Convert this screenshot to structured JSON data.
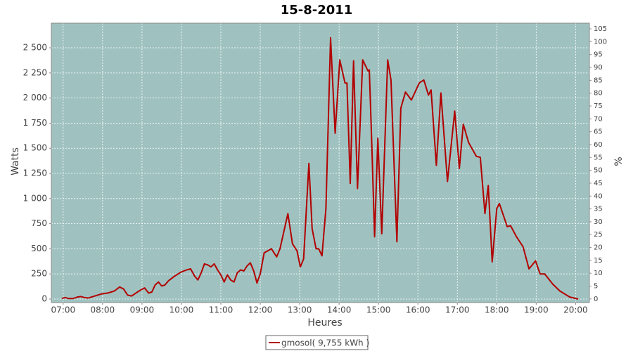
{
  "chart_data": {
    "type": "line",
    "title": "15-8-2011",
    "x_label": "Heures",
    "y_label": "Watts",
    "y2_label": "%",
    "xlim": [
      "06:42",
      "20:21"
    ],
    "xticks": [
      "07:00",
      "08:00",
      "09:00",
      "10:00",
      "11:00",
      "12:00",
      "13:00",
      "14:00",
      "15:00",
      "16:00",
      "17:00",
      "18:00",
      "19:00",
      "20:00"
    ],
    "ylim": [
      -35,
      2745
    ],
    "yticks": [
      0,
      250,
      500,
      750,
      {
        "value": 1000,
        "label": "1 000"
      },
      {
        "value": 1250,
        "label": "1 250"
      },
      {
        "value": 1500,
        "label": "1 500"
      },
      {
        "value": 1750,
        "label": "1 750"
      },
      {
        "value": 2000,
        "label": "2 000"
      },
      {
        "value": 2250,
        "label": "2 250"
      },
      {
        "value": 2500,
        "label": "2 500"
      }
    ],
    "y2lim": [
      -1.4,
      107.2
    ],
    "y2ticks": [
      0,
      5,
      10,
      15,
      20,
      25,
      30,
      35,
      40,
      45,
      50,
      55,
      60,
      65,
      70,
      75,
      80,
      85,
      90,
      95,
      100,
      105
    ],
    "grid": true,
    "background": "#9fc2c0",
    "x": [
      "06:58",
      "07:03",
      "07:08",
      "07:15",
      "07:22",
      "07:27",
      "07:32",
      "07:38",
      "07:48",
      "07:58",
      "08:08",
      "08:18",
      "08:26",
      "08:32",
      "08:38",
      "08:44",
      "08:53",
      "08:58",
      "09:04",
      "09:10",
      "09:15",
      "09:20",
      "09:25",
      "09:30",
      "09:35",
      "09:40",
      "09:50",
      "10:00",
      "10:08",
      "10:14",
      "10:20",
      "10:25",
      "10:30",
      "10:35",
      "10:40",
      "10:45",
      "10:50",
      "10:55",
      "11:00",
      "11:05",
      "11:10",
      "11:15",
      "11:20",
      "11:25",
      "11:30",
      "11:35",
      "11:40",
      "11:45",
      "11:50",
      "11:55",
      "12:00",
      "12:06",
      "12:17",
      "12:25",
      "12:30",
      "12:42",
      "12:49",
      "12:56",
      "13:01",
      "13:06",
      "13:14",
      "13:19",
      "13:25",
      "13:29",
      "13:34",
      "13:40",
      "13:47",
      "13:54",
      "14:01",
      "14:09",
      "14:12",
      "14:17",
      "14:22",
      "14:28",
      "14:36",
      "14:44",
      "14:46",
      "14:50",
      "14:54",
      "14:59",
      "15:05",
      "15:14",
      "15:19",
      "15:28",
      "15:34",
      "15:41",
      "15:50",
      "16:02",
      "16:09",
      "16:16",
      "16:20",
      "16:28",
      "16:35",
      "16:45",
      "16:56",
      "17:03",
      "17:09",
      "17:17",
      "17:29",
      "17:35",
      "17:42",
      "17:47",
      "17:53",
      "18:00",
      "18:04",
      "18:16",
      "18:21",
      "18:30",
      "18:40",
      "18:49",
      "18:59",
      "19:06",
      "19:13",
      "19:25",
      "19:36",
      "19:51",
      "20:04"
    ],
    "series": [
      {
        "name": "gmosol( 9,755 kWh )",
        "color": "#b20000",
        "values": [
          5,
          15,
          5,
          5,
          20,
          25,
          15,
          10,
          30,
          50,
          60,
          80,
          120,
          100,
          40,
          30,
          70,
          90,
          110,
          60,
          70,
          140,
          170,
          130,
          140,
          180,
          230,
          270,
          290,
          300,
          230,
          190,
          260,
          350,
          340,
          320,
          350,
          290,
          240,
          170,
          240,
          190,
          170,
          260,
          290,
          280,
          330,
          360,
          280,
          160,
          250,
          460,
          500,
          420,
          500,
          850,
          550,
          480,
          320,
          400,
          1350,
          700,
          500,
          500,
          430,
          900,
          2600,
          1650,
          2380,
          2150,
          2150,
          1150,
          2370,
          1100,
          2380,
          2270,
          2280,
          1500,
          620,
          1600,
          650,
          2380,
          2180,
          570,
          1900,
          2060,
          1980,
          2150,
          2180,
          2030,
          2080,
          1330,
          2050,
          1170,
          1870,
          1300,
          1740,
          1560,
          1420,
          1410,
          850,
          1130,
          370,
          900,
          950,
          720,
          730,
          620,
          520,
          300,
          380,
          250,
          250,
          150,
          80,
          20,
          0
        ]
      }
    ]
  }
}
